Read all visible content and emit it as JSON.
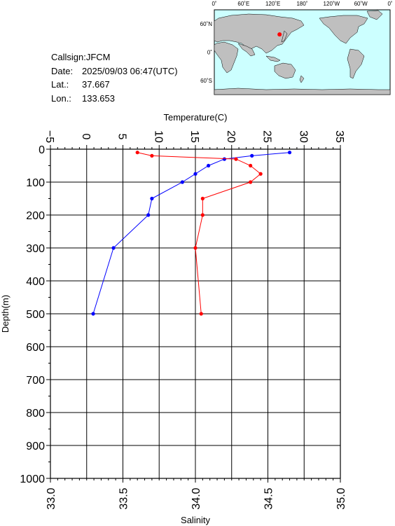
{
  "station": {
    "callsign_line": "Callsign:JFCM",
    "date_label": "Date:",
    "date_value": "2025/09/03 06:47(UTC)",
    "lat_label": "Lat.:",
    "lat_value": "37.667",
    "lon_label": "Lon.:",
    "lon_value": "133.653"
  },
  "map": {
    "top_labels": [
      "0˚",
      "60˚E",
      "120˚E",
      "180˚",
      "120˚W",
      "60˚W",
      "0˚"
    ],
    "lat_labels": [
      "60˚N",
      "0˚",
      "60˚S"
    ],
    "ocean_color": "#ccffff",
    "land_color": "#bfbfbf",
    "marker_color": "#ff0000",
    "marker_lon": 133.653,
    "marker_lat": 37.667
  },
  "chart_data": {
    "type": "line",
    "ylabel": "Depth(m)",
    "ylim": [
      0,
      1000
    ],
    "y_reversed": true,
    "y_ticks": [
      "0",
      "100",
      "200",
      "300",
      "400",
      "500",
      "600",
      "700",
      "800",
      "900",
      "1000"
    ],
    "top_axis": {
      "label": "Temperature(C)",
      "range": [
        -5,
        35
      ],
      "ticks": [
        "−5",
        "0",
        "5",
        "10",
        "15",
        "20",
        "25",
        "30",
        "35"
      ]
    },
    "bottom_axis": {
      "label": "Salinity",
      "range": [
        33.0,
        35.0
      ],
      "ticks": [
        "33.0",
        "33.5",
        "34.0",
        "34.5",
        "35.0"
      ]
    },
    "grid": true,
    "series": [
      {
        "axis": "temperature",
        "color": "#0000ff",
        "points": [
          [
            28.0,
            10
          ],
          [
            22.8,
            20
          ],
          [
            19.0,
            30
          ],
          [
            16.8,
            50
          ],
          [
            15.0,
            75
          ],
          [
            13.2,
            100
          ],
          [
            9.0,
            150
          ],
          [
            8.5,
            200
          ],
          [
            3.7,
            300
          ],
          [
            0.9,
            500
          ]
        ]
      },
      {
        "axis": "salinity",
        "color": "#ff0000",
        "points": [
          [
            33.6,
            10
          ],
          [
            33.7,
            20
          ],
          [
            34.28,
            30
          ],
          [
            34.38,
            50
          ],
          [
            34.45,
            75
          ],
          [
            34.38,
            100
          ],
          [
            34.05,
            150
          ],
          [
            34.05,
            200
          ],
          [
            34.0,
            300
          ],
          [
            34.04,
            500
          ]
        ]
      }
    ]
  }
}
